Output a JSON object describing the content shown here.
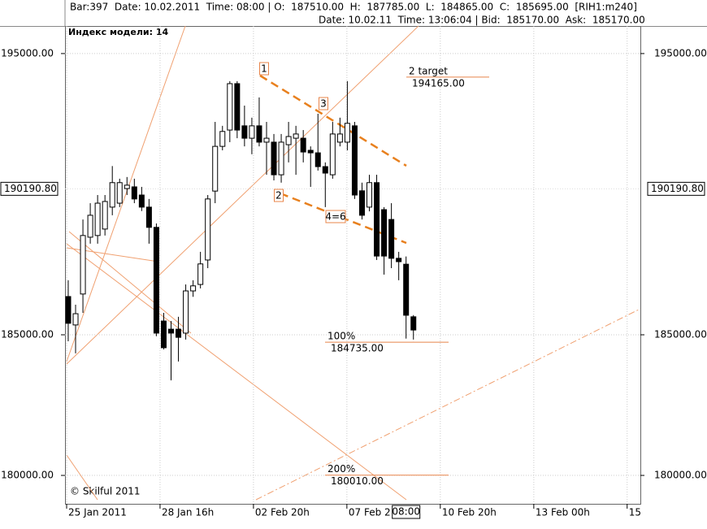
{
  "header": {
    "line1": "Bar:397  Date: 10.02.2011  Time: 08:00 | O:  187510.00  H:  187785.00  L:  184865.00  C:  185695.00  [RIH1:m240]",
    "line2": "Date: 10.02.11  Time: 13:06:04 | Bid:  185170.00  Ask:  185170.00"
  },
  "chart_data": {
    "type": "candlestick",
    "title": "Индекс модели: 14",
    "footer": "© Skilful 2011",
    "open": [
      186360,
      185350,
      186450,
      188470,
      188530,
      188760,
      189540,
      189680,
      190200,
      190260,
      189970,
      189540,
      188820,
      185490,
      185200,
      185200,
      185060,
      186560,
      186790,
      187660,
      190110,
      191700,
      192280,
      193930,
      192430,
      191990,
      192430,
      191850,
      191850,
      190690,
      191760,
      191990,
      191990,
      191560,
      191470,
      190980,
      190690,
      191850,
      191850,
      192430,
      190120,
      189540,
      190410,
      189450,
      189100,
      187720,
      187510,
      185640
    ],
    "high": [
      186940,
      186070,
      189100,
      189680,
      189970,
      189970,
      191000,
      190550,
      190610,
      190550,
      190260,
      189830,
      188960,
      185780,
      185490,
      185640,
      186790,
      186940,
      187950,
      189970,
      192570,
      192430,
      194020,
      194020,
      193150,
      192720,
      193440,
      192570,
      192140,
      192140,
      192570,
      192430,
      192280,
      191700,
      192860,
      191130,
      192570,
      192720,
      194020,
      192570,
      190410,
      190690,
      190690,
      189540,
      189680,
      187950,
      187785,
      185700
    ],
    "low": [
      184770,
      184340,
      185780,
      188240,
      188240,
      188530,
      189250,
      189540,
      189970,
      189680,
      189400,
      188240,
      184950,
      184480,
      183380,
      184050,
      184830,
      186350,
      186650,
      187370,
      189680,
      191560,
      191850,
      191990,
      191700,
      191420,
      191700,
      190690,
      190490,
      190410,
      191130,
      190690,
      191130,
      190260,
      190840,
      189540,
      190550,
      191700,
      191560,
      189830,
      189100,
      189390,
      187660,
      187140,
      187370,
      186940,
      184865,
      184830
    ],
    "close": [
      185410,
      185750,
      188530,
      189250,
      189680,
      189740,
      190410,
      190410,
      190320,
      189830,
      189540,
      188820,
      185060,
      184540,
      185060,
      184910,
      186560,
      186740,
      187520,
      189830,
      191700,
      192230,
      193930,
      192280,
      191990,
      192430,
      191850,
      191990,
      190690,
      191850,
      192050,
      192140,
      191500,
      191470,
      190980,
      190750,
      192140,
      192140,
      192520,
      189970,
      189250,
      190410,
      187800,
      187800,
      187720,
      187600,
      185695,
      185170
    ],
    "up_color": "#ffffff",
    "down_color": "#000000",
    "line_color": "#e8844a",
    "ylim": [
      178990,
      195980
    ],
    "yticks": [
      {
        "value": 180000,
        "label": "180000.00"
      },
      {
        "value": 185000,
        "label": "185000.00"
      },
      {
        "value": 195000,
        "label": "195000.00"
      }
    ],
    "xlim": [
      -0.44,
      77.9
    ],
    "xticks": [
      {
        "value": -0.22,
        "label": "25 Jan 2011"
      },
      {
        "value": 12.5,
        "label": "28 Jan 16h"
      },
      {
        "value": 25.22,
        "label": "02 Feb 20h"
      },
      {
        "value": 37.94,
        "label": "07 Feb 2"
      },
      {
        "value": 50.66,
        "label": "10 Feb 20h"
      },
      {
        "value": 63.39,
        "label": "13 Feb 00h"
      },
      {
        "value": 76.1,
        "label": "15"
      }
    ],
    "grid": true,
    "price_marker": {
      "value": 190190.8,
      "label": "190190.80"
    },
    "time_marker": {
      "value": 46,
      "label": "08:00"
    },
    "levels": [
      {
        "name": "100%",
        "value": 184735,
        "label": "184735.00"
      },
      {
        "name": "200%",
        "value": 180010,
        "label": "180010.00"
      },
      {
        "name": "2 target",
        "value": 194165,
        "label": "194165.00"
      }
    ],
    "wave_labels": [
      "1",
      "2",
      "3",
      "4=6"
    ]
  }
}
